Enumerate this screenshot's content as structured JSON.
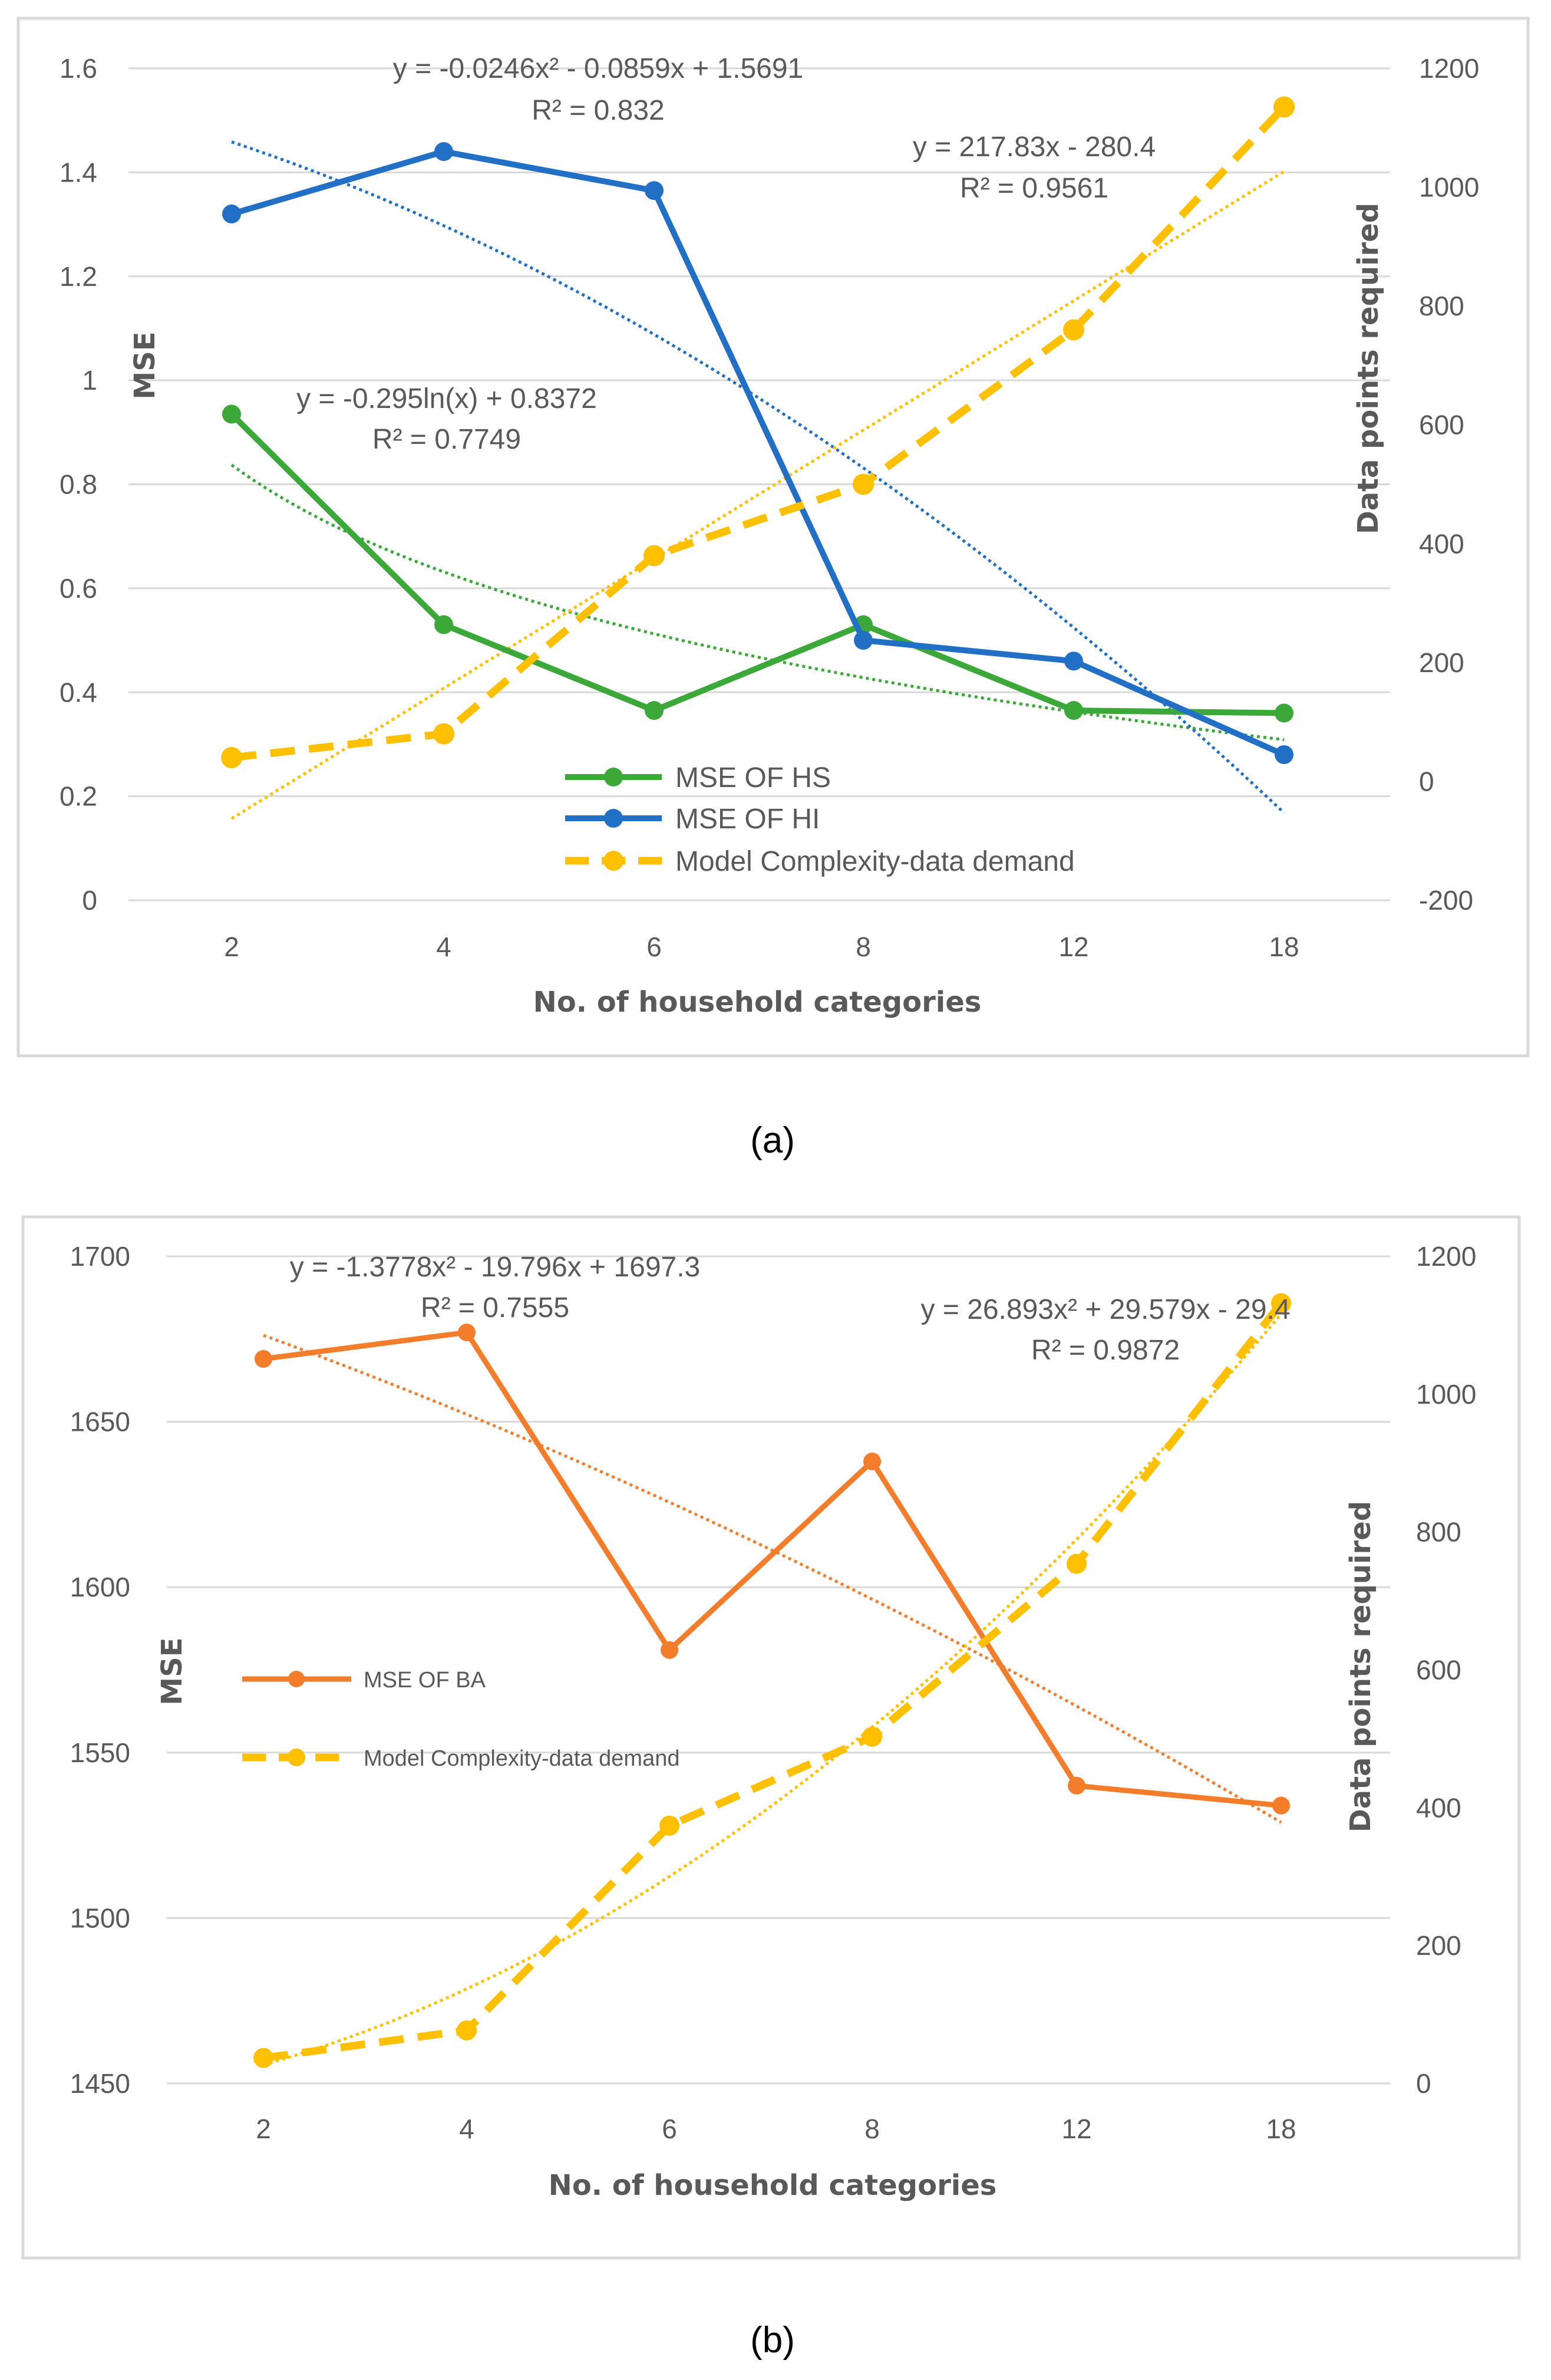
{
  "chart_data": [
    {
      "type": "line",
      "panel_label": "(a)",
      "categories": [
        "2",
        "4",
        "6",
        "8",
        "12",
        "18"
      ],
      "xlabel": "No. of household categories",
      "ylabel": "MSE",
      "y2label": "Data points required",
      "ylim": [
        0,
        1.6
      ],
      "yticks": [
        "0",
        "0.2",
        "0.4",
        "0.6",
        "0.8",
        "1",
        "1.2",
        "1.4",
        "1.6"
      ],
      "y2lim": [
        -200,
        1200
      ],
      "y2ticks": [
        "-200",
        "0",
        "200",
        "400",
        "600",
        "800",
        "1000",
        "1200"
      ],
      "grid": true,
      "legend_position": "bottom-center",
      "series": [
        {
          "name": "MSE OF HS",
          "axis": "left",
          "style": "solid",
          "color": "#3CA83A",
          "values": [
            0.935,
            0.53,
            0.365,
            0.53,
            0.365,
            0.36
          ],
          "trend": {
            "kind": "log",
            "coef": [
              -0.295,
              0.8372
            ],
            "equation": "y = -0.295ln(x) + 0.8372",
            "r2": "R² = 0.7749"
          }
        },
        {
          "name": "MSE OF HI",
          "axis": "left",
          "style": "solid",
          "color": "#2270C6",
          "values": [
            1.32,
            1.44,
            1.365,
            0.5,
            0.46,
            0.28
          ],
          "trend": {
            "kind": "poly2",
            "coef": [
              -0.0246,
              -0.0859,
              1.5691
            ],
            "equation": "y = -0.0246x² - 0.0859x + 1.5691",
            "r2": "R² = 0.832"
          }
        },
        {
          "name": "Model Complexity-data demand",
          "axis": "right",
          "style": "dashed",
          "color": "#FFC000",
          "values": [
            40,
            80,
            380,
            500,
            760,
            1135
          ],
          "trend": {
            "kind": "linear",
            "coef": [
              217.83,
              -280.4
            ],
            "equation": "y = 217.83x - 280.4",
            "r2": "R² = 0.9561"
          }
        }
      ]
    },
    {
      "type": "line",
      "panel_label": "(b)",
      "categories": [
        "2",
        "4",
        "6",
        "8",
        "12",
        "18"
      ],
      "xlabel": "No. of household categories",
      "ylabel": "MSE",
      "y2label": "Data points required",
      "ylim": [
        1450,
        1700
      ],
      "yticks": [
        "1450",
        "1500",
        "1550",
        "1600",
        "1650",
        "1700"
      ],
      "y2lim": [
        0,
        1200
      ],
      "y2ticks": [
        "0",
        "200",
        "400",
        "600",
        "800",
        "1000",
        "1200"
      ],
      "grid": true,
      "legend_position": "left-center",
      "series": [
        {
          "name": "MSE OF BA",
          "axis": "left",
          "style": "solid",
          "color": "#F37D2B",
          "values": [
            1669,
            1677,
            1581,
            1638,
            1540,
            1534
          ],
          "trend": {
            "kind": "poly2",
            "coef": [
              -1.3778,
              -19.796,
              1697.3
            ],
            "equation": "y = -1.3778x² - 19.796x + 1697.3",
            "r2": "R² = 0.7555"
          }
        },
        {
          "name": "Model Complexity-data demand",
          "axis": "right",
          "style": "dashed",
          "color": "#FFC000",
          "values": [
            37,
            77,
            374,
            503,
            754,
            1132
          ],
          "trend": {
            "kind": "poly2",
            "coef": [
              26.893,
              29.579,
              -29.4
            ],
            "equation": "y = 26.893x² + 29.579x - 29.4",
            "r2": "R² = 0.9872"
          }
        }
      ]
    }
  ]
}
